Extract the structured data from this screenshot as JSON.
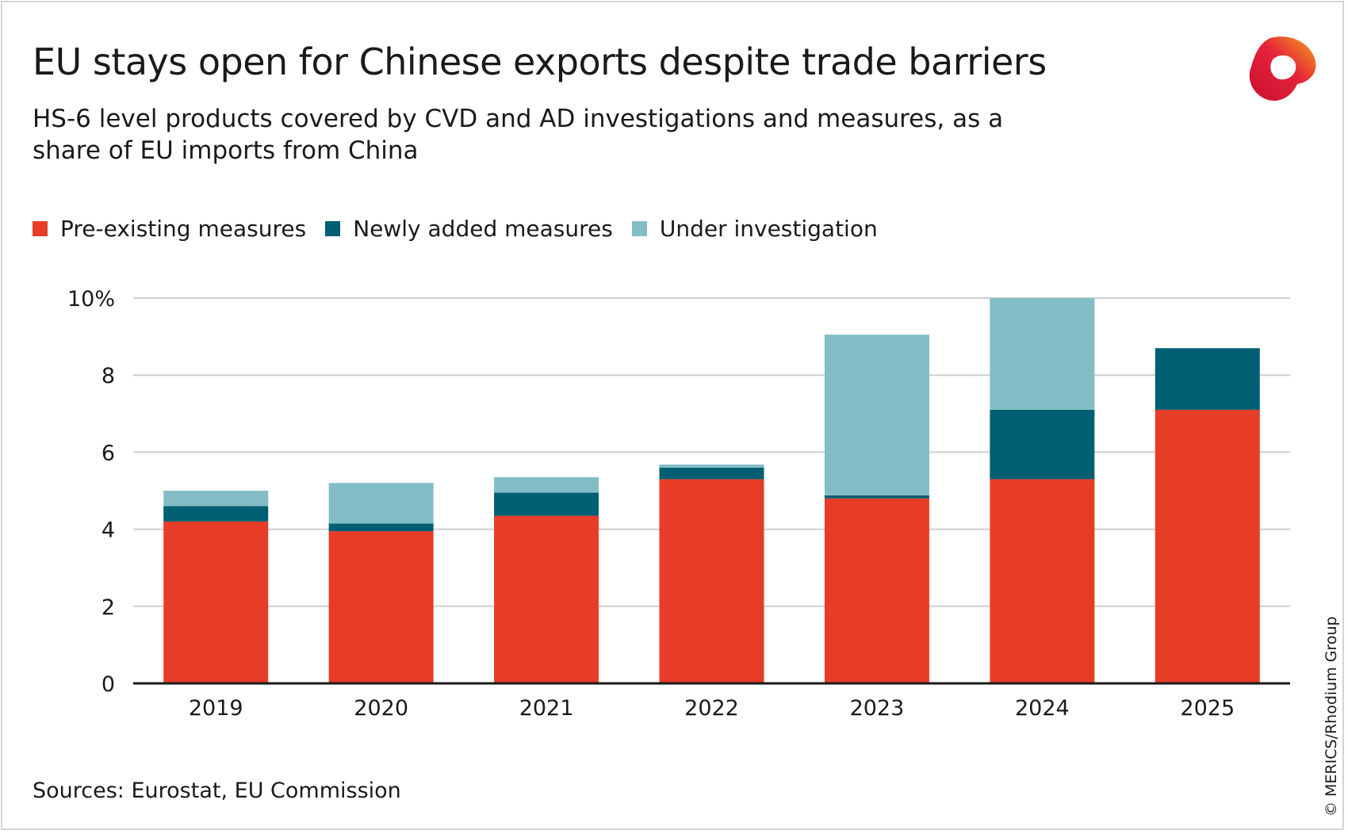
{
  "title": "EU stays open for Chinese exports despite trade barriers",
  "subtitle": "HS-6 level products covered by CVD and AD investigations and measures, as a share of EU imports from China",
  "source": "Sources: Eurostat, EU Commission",
  "copyright": "© MERICS/Rhodium Group",
  "logo_icon": "merics-logo-icon",
  "chart_data": {
    "type": "bar",
    "stacked": true,
    "categories": [
      "2019",
      "2020",
      "2021",
      "2022",
      "2023",
      "2024",
      "2025"
    ],
    "series": [
      {
        "name": "Pre-existing measures",
        "color": "#e63c28",
        "values": [
          4.2,
          3.95,
          4.35,
          5.3,
          4.8,
          5.3,
          7.1
        ]
      },
      {
        "name": "Newly added measures",
        "color": "#005f73",
        "values": [
          0.4,
          0.2,
          0.6,
          0.3,
          0.08,
          1.8,
          1.6
        ]
      },
      {
        "name": "Under investigation",
        "color": "#82bdc5",
        "values": [
          0.4,
          1.05,
          0.4,
          0.08,
          4.17,
          2.9,
          0
        ]
      }
    ],
    "yticks": [
      0,
      2,
      4,
      6,
      8,
      10
    ],
    "ytick_labels": [
      "0",
      "2",
      "4",
      "6",
      "8",
      "10%"
    ],
    "ylim": [
      0,
      10
    ],
    "grid": true,
    "legend_position": "top-left",
    "xlabel": "",
    "ylabel": ""
  }
}
